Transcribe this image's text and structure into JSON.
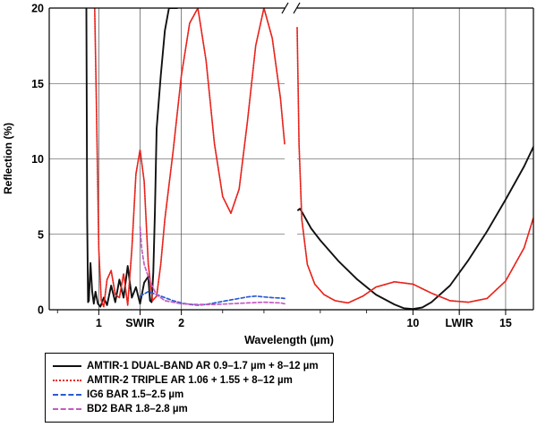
{
  "chart_data": {
    "type": "line",
    "ylabel": "Reflection (%)",
    "xlabel": "Wavelength (µm)",
    "ylim": [
      0,
      20
    ],
    "y_ticks": [
      0,
      5,
      10,
      15,
      20
    ],
    "x_ticks_left": [
      {
        "value": 1,
        "label": "1"
      },
      {
        "value": 1.5,
        "label": "SWIR"
      },
      {
        "value": 2,
        "label": "2"
      }
    ],
    "x_ticks_right": [
      {
        "value": 10,
        "label": "10"
      },
      {
        "value": 12.5,
        "label": "LWIR"
      },
      {
        "value": 15,
        "label": "15"
      }
    ],
    "xlim_left": [
      0.4,
      3.25
    ],
    "xlim_right": [
      3.75,
      16.5
    ],
    "axis_break": true,
    "grid": true,
    "legend_position": "bottom-left, below plot",
    "series": [
      {
        "name": "AMTIR-1 DUAL-BAND AR 0.9–1.7 µm + 8–12 µm",
        "color": "#111111",
        "style": "solid",
        "segments": [
          {
            "x": [
              0.85,
              0.86,
              0.87,
              0.88,
              0.9,
              0.92,
              0.94,
              0.96,
              0.99,
              1.02,
              1.06,
              1.1,
              1.15,
              1.2,
              1.25,
              1.3,
              1.35,
              1.4,
              1.45,
              1.5,
              1.55,
              1.6,
              1.62,
              1.64,
              1.66,
              1.68,
              1.7,
              1.75,
              1.8,
              1.85,
              1.9,
              1.95
            ],
            "y": [
              20,
              6,
              0.5,
              0.6,
              3.1,
              1.2,
              0.4,
              1.2,
              0.4,
              0.2,
              0.8,
              0.3,
              1.6,
              0.5,
              2.0,
              0.8,
              2.9,
              0.8,
              1.5,
              0.4,
              1.8,
              2.2,
              0.6,
              0.5,
              2.5,
              6.5,
              12,
              15.5,
              18.5,
              20,
              20,
              20
            ]
          },
          {
            "x": [
              3.8,
              3.9,
              4.0,
              4.5,
              5,
              6,
              7,
              8,
              9,
              9.5,
              10,
              10.5,
              11,
              12,
              13,
              14,
              15,
              16,
              16.5
            ],
            "y": [
              6.6,
              6.7,
              6.5,
              5.4,
              4.6,
              3.2,
              2.0,
              1.0,
              0.35,
              0.1,
              0.05,
              0.15,
              0.5,
              1.6,
              3.3,
              5.2,
              7.3,
              9.5,
              10.8
            ]
          }
        ]
      },
      {
        "name": "AMTIR-2 TRIPLE AR 1.06 + 1.55 + 8–12 µm",
        "color": "#e8231c",
        "style": "dotted",
        "segments": [
          {
            "x": [
              0.95,
              0.97,
              1.0,
              1.03,
              1.06,
              1.1,
              1.15,
              1.2,
              1.25,
              1.3,
              1.35,
              1.4,
              1.45,
              1.5,
              1.55,
              1.6,
              1.65,
              1.7,
              1.75,
              1.8,
              1.9,
              2.0,
              2.1,
              2.2,
              2.3,
              2.4,
              2.5,
              2.6,
              2.7,
              2.8,
              2.9,
              3.0,
              3.1,
              3.2,
              3.25
            ],
            "y": [
              20,
              14,
              4,
              0.6,
              0.2,
              2.0,
              2.6,
              1.0,
              0.8,
              2.4,
              0.3,
              4.0,
              9.0,
              10.6,
              8.5,
              3.0,
              0.6,
              0.9,
              3.0,
              6.0,
              10.5,
              15.5,
              19.0,
              20.0,
              16.5,
              11.0,
              7.5,
              6.4,
              8.0,
              12.5,
              17.5,
              20.0,
              18.0,
              14.0,
              11.0
            ]
          },
          {
            "x": [
              3.75,
              3.85,
              4.0,
              4.3,
              4.7,
              5.2,
              5.8,
              6.5,
              7.3,
              8.0,
              9.0,
              10.0,
              11.0,
              12.0,
              13.0,
              14.0,
              15.0,
              16.0,
              16.5
            ],
            "y": [
              18.7,
              11.0,
              6.0,
              3.0,
              1.7,
              1.0,
              0.6,
              0.45,
              0.9,
              1.5,
              1.85,
              1.7,
              1.1,
              0.6,
              0.5,
              0.75,
              1.9,
              4.1,
              6.1
            ]
          }
        ]
      },
      {
        "name": "IG6 BAR 1.5–2.5 µm",
        "color": "#2a5bd0",
        "style": "dashed",
        "segments": [
          {
            "x": [
              1.5,
              1.6,
              1.7,
              1.8,
              1.9,
              2.0,
              2.1,
              2.2,
              2.3,
              2.4,
              2.5,
              2.6,
              2.7,
              2.8,
              2.9,
              3.0,
              3.1,
              3.2,
              3.25
            ],
            "y": [
              0.9,
              1.2,
              1.0,
              0.8,
              0.6,
              0.45,
              0.35,
              0.3,
              0.35,
              0.45,
              0.55,
              0.65,
              0.75,
              0.85,
              0.9,
              0.85,
              0.8,
              0.78,
              0.75
            ]
          }
        ]
      },
      {
        "name": "BD2 BAR 1.8–2.8 µm",
        "color": "#c35bc3",
        "style": "dashed",
        "segments": [
          {
            "x": [
              1.5,
              1.52,
              1.55,
              1.6,
              1.65,
              1.7,
              1.75,
              1.8,
              1.9,
              2.0,
              2.2,
              2.4,
              2.6,
              2.8,
              3.0,
              3.2,
              3.25
            ],
            "y": [
              5.5,
              4.0,
              3.0,
              2.2,
              1.5,
              1.0,
              0.8,
              0.6,
              0.5,
              0.4,
              0.35,
              0.35,
              0.4,
              0.45,
              0.5,
              0.45,
              0.4
            ]
          }
        ]
      }
    ]
  }
}
